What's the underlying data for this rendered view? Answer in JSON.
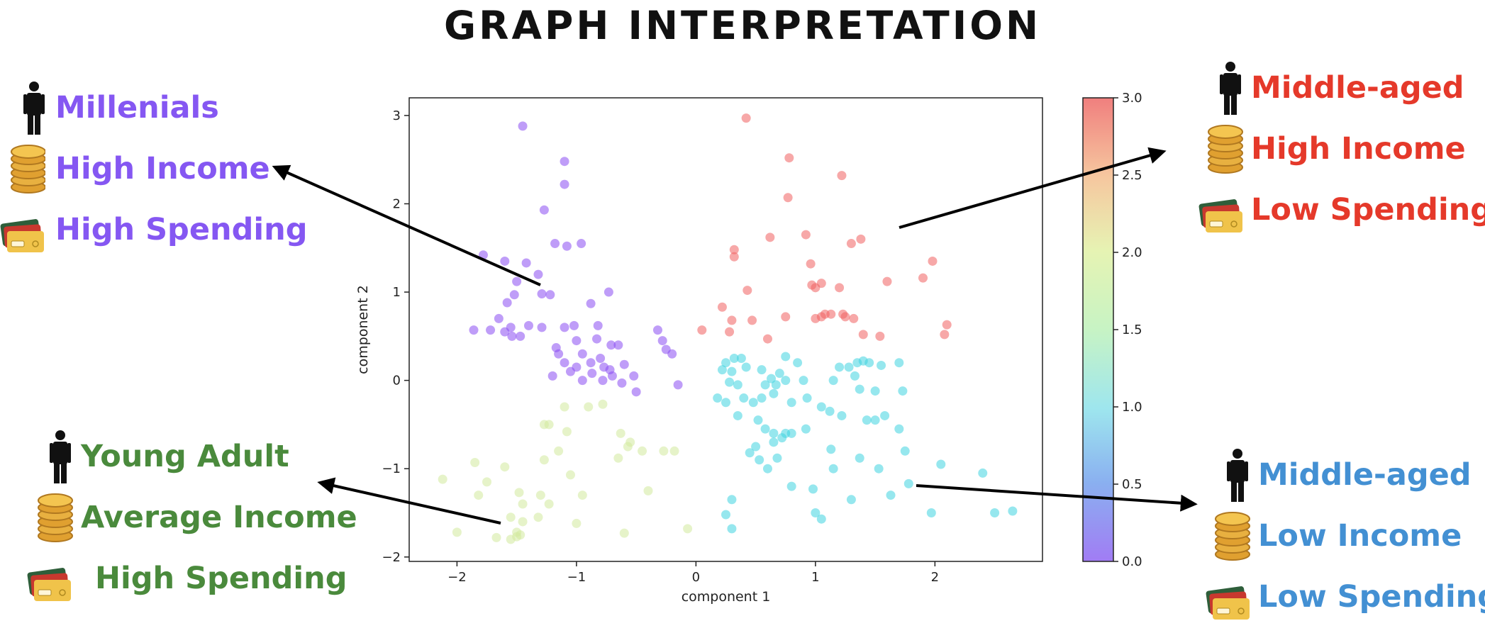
{
  "title": "GRAPH INTERPRETATION",
  "segments": [
    {
      "id": "purple",
      "color": "#8557F2",
      "lines": [
        "Millenials",
        "High Income",
        "High Spending"
      ]
    },
    {
      "id": "red",
      "color": "#E5392A",
      "lines": [
        "Middle-aged",
        "High Income",
        "Low Spending"
      ]
    },
    {
      "id": "green",
      "color": "#4A8A3C",
      "lines": [
        "Young Adult",
        "Average Income",
        "High Spending"
      ]
    },
    {
      "id": "blue",
      "color": "#4390D3",
      "lines": [
        "Middle-aged",
        "Low Income",
        "Low Spending"
      ]
    }
  ],
  "chart_data": {
    "type": "scatter",
    "xlabel": "component 1",
    "ylabel": "component 2",
    "xlim": [
      -2.4,
      2.9
    ],
    "ylim": [
      -2.05,
      3.2
    ],
    "xticks": [
      -2,
      -1,
      0,
      1,
      2
    ],
    "yticks": [
      -2,
      -1,
      0,
      1,
      2,
      3
    ],
    "colorbar": {
      "min": 0.0,
      "max": 3.0,
      "ticks": [
        "0.0",
        "0.5",
        "1.0",
        "1.5",
        "2.0",
        "2.5",
        "3.0"
      ],
      "colormap": "rainbow"
    },
    "grid": false,
    "series": [
      {
        "cluster": 0,
        "color": "#8B4DF2",
        "points": [
          [
            -1.45,
            2.88
          ],
          [
            -1.1,
            2.48
          ],
          [
            -1.1,
            2.22
          ],
          [
            -1.27,
            1.93
          ],
          [
            -1.18,
            1.55
          ],
          [
            -1.08,
            1.52
          ],
          [
            -0.96,
            1.55
          ],
          [
            -1.78,
            1.42
          ],
          [
            -1.6,
            1.35
          ],
          [
            -1.42,
            1.33
          ],
          [
            -1.32,
            1.2
          ],
          [
            -1.5,
            1.12
          ],
          [
            -1.29,
            0.98
          ],
          [
            -1.22,
            0.97
          ],
          [
            -0.73,
            1.0
          ],
          [
            -1.52,
            0.97
          ],
          [
            -1.58,
            0.88
          ],
          [
            -0.88,
            0.87
          ],
          [
            -1.65,
            0.7
          ],
          [
            -1.55,
            0.6
          ],
          [
            -1.4,
            0.62
          ],
          [
            -1.29,
            0.6
          ],
          [
            -1.1,
            0.6
          ],
          [
            -1.02,
            0.62
          ],
          [
            -0.82,
            0.62
          ],
          [
            -1.86,
            0.57
          ],
          [
            -1.72,
            0.57
          ],
          [
            -1.6,
            0.55
          ],
          [
            -1.54,
            0.5
          ],
          [
            -1.47,
            0.5
          ],
          [
            -1.0,
            0.45
          ],
          [
            -0.83,
            0.47
          ],
          [
            -0.71,
            0.4
          ],
          [
            -0.65,
            0.4
          ],
          [
            -0.32,
            0.57
          ],
          [
            -0.28,
            0.45
          ],
          [
            -1.17,
            0.37
          ],
          [
            -1.15,
            0.3
          ],
          [
            -0.95,
            0.3
          ],
          [
            -0.8,
            0.25
          ],
          [
            -1.1,
            0.2
          ],
          [
            -0.88,
            0.2
          ],
          [
            -1.0,
            0.15
          ],
          [
            -0.77,
            0.15
          ],
          [
            -0.72,
            0.12
          ],
          [
            -1.2,
            0.05
          ],
          [
            -1.05,
            0.1
          ],
          [
            -0.87,
            0.08
          ],
          [
            -0.7,
            0.05
          ],
          [
            -0.52,
            0.05
          ],
          [
            -0.95,
            0.0
          ],
          [
            -0.78,
            0.0
          ],
          [
            -0.62,
            -0.03
          ],
          [
            -0.5,
            -0.13
          ],
          [
            -0.6,
            0.18
          ],
          [
            -0.2,
            0.3
          ],
          [
            -0.25,
            0.35
          ],
          [
            -0.15,
            -0.05
          ]
        ]
      },
      {
        "cluster": 1,
        "color": "#3FD3E0",
        "points": [
          [
            0.25,
            0.2
          ],
          [
            0.32,
            0.25
          ],
          [
            0.38,
            0.25
          ],
          [
            0.22,
            0.12
          ],
          [
            0.3,
            0.1
          ],
          [
            0.42,
            0.15
          ],
          [
            0.55,
            0.12
          ],
          [
            0.75,
            0.27
          ],
          [
            0.85,
            0.2
          ],
          [
            0.63,
            0.02
          ],
          [
            0.7,
            0.08
          ],
          [
            0.58,
            -0.05
          ],
          [
            0.67,
            -0.05
          ],
          [
            0.75,
            0.0
          ],
          [
            0.9,
            0.0
          ],
          [
            0.28,
            -0.02
          ],
          [
            0.35,
            -0.05
          ],
          [
            0.18,
            -0.2
          ],
          [
            0.25,
            -0.25
          ],
          [
            0.4,
            -0.2
          ],
          [
            0.48,
            -0.25
          ],
          [
            0.55,
            -0.2
          ],
          [
            0.65,
            -0.15
          ],
          [
            0.8,
            -0.25
          ],
          [
            0.93,
            -0.2
          ],
          [
            1.05,
            -0.3
          ],
          [
            1.15,
            0.0
          ],
          [
            1.2,
            0.15
          ],
          [
            1.28,
            0.15
          ],
          [
            1.35,
            0.2
          ],
          [
            1.4,
            0.22
          ],
          [
            1.45,
            0.2
          ],
          [
            1.55,
            0.17
          ],
          [
            1.7,
            0.2
          ],
          [
            1.33,
            0.05
          ],
          [
            1.37,
            -0.1
          ],
          [
            1.5,
            -0.12
          ],
          [
            1.73,
            -0.12
          ],
          [
            1.12,
            -0.35
          ],
          [
            1.22,
            -0.4
          ],
          [
            1.43,
            -0.45
          ],
          [
            1.5,
            -0.45
          ],
          [
            1.58,
            -0.4
          ],
          [
            1.7,
            -0.55
          ],
          [
            0.35,
            -0.4
          ],
          [
            0.52,
            -0.45
          ],
          [
            0.58,
            -0.55
          ],
          [
            0.65,
            -0.6
          ],
          [
            0.75,
            -0.6
          ],
          [
            0.8,
            -0.6
          ],
          [
            0.92,
            -0.55
          ],
          [
            0.65,
            -0.7
          ],
          [
            0.72,
            -0.65
          ],
          [
            0.5,
            -0.75
          ],
          [
            0.45,
            -0.82
          ],
          [
            0.53,
            -0.9
          ],
          [
            0.6,
            -1.0
          ],
          [
            0.68,
            -0.88
          ],
          [
            1.13,
            -0.78
          ],
          [
            1.15,
            -1.0
          ],
          [
            1.37,
            -0.88
          ],
          [
            1.53,
            -1.0
          ],
          [
            1.75,
            -0.8
          ],
          [
            2.05,
            -0.95
          ],
          [
            2.4,
            -1.05
          ],
          [
            1.78,
            -1.17
          ],
          [
            1.3,
            -1.35
          ],
          [
            1.63,
            -1.3
          ],
          [
            0.8,
            -1.2
          ],
          [
            0.3,
            -1.35
          ],
          [
            0.25,
            -1.52
          ],
          [
            0.98,
            -1.23
          ],
          [
            1.0,
            -1.5
          ],
          [
            1.05,
            -1.57
          ],
          [
            0.3,
            -1.68
          ],
          [
            1.97,
            -1.5
          ],
          [
            2.5,
            -1.5
          ],
          [
            2.65,
            -1.48
          ]
        ]
      },
      {
        "cluster": 2,
        "color": "#D1EA9C",
        "points": [
          [
            -1.1,
            -0.3
          ],
          [
            -0.9,
            -0.3
          ],
          [
            -0.78,
            -0.27
          ],
          [
            -1.27,
            -0.5
          ],
          [
            -1.23,
            -0.5
          ],
          [
            -1.08,
            -0.58
          ],
          [
            -0.63,
            -0.6
          ],
          [
            -0.55,
            -0.7
          ],
          [
            -0.57,
            -0.75
          ],
          [
            -0.65,
            -0.88
          ],
          [
            -0.45,
            -0.8
          ],
          [
            -0.27,
            -0.8
          ],
          [
            -0.18,
            -0.8
          ],
          [
            -1.15,
            -0.8
          ],
          [
            -1.27,
            -0.9
          ],
          [
            -1.05,
            -1.07
          ],
          [
            -1.85,
            -0.93
          ],
          [
            -1.6,
            -0.98
          ],
          [
            -1.75,
            -1.15
          ],
          [
            -2.12,
            -1.12
          ],
          [
            -0.4,
            -1.25
          ],
          [
            -0.95,
            -1.3
          ],
          [
            -1.82,
            -1.3
          ],
          [
            -1.48,
            -1.27
          ],
          [
            -1.3,
            -1.3
          ],
          [
            -1.23,
            -1.4
          ],
          [
            -1.45,
            -1.4
          ],
          [
            -1.55,
            -1.55
          ],
          [
            -1.45,
            -1.6
          ],
          [
            -1.32,
            -1.55
          ],
          [
            -1.0,
            -1.62
          ],
          [
            -1.5,
            -1.72
          ],
          [
            -1.5,
            -1.77
          ],
          [
            -1.67,
            -1.78
          ],
          [
            -1.55,
            -1.8
          ],
          [
            -1.47,
            -1.75
          ],
          [
            -2.0,
            -1.72
          ],
          [
            -0.6,
            -1.73
          ],
          [
            -0.07,
            -1.68
          ]
        ]
      },
      {
        "cluster": 3,
        "color": "#F06060",
        "points": [
          [
            0.42,
            2.97
          ],
          [
            0.78,
            2.52
          ],
          [
            1.22,
            2.32
          ],
          [
            0.77,
            2.07
          ],
          [
            0.92,
            1.65
          ],
          [
            1.3,
            1.55
          ],
          [
            1.38,
            1.6
          ],
          [
            0.62,
            1.62
          ],
          [
            0.32,
            1.48
          ],
          [
            0.32,
            1.4
          ],
          [
            0.96,
            1.32
          ],
          [
            1.98,
            1.35
          ],
          [
            0.97,
            1.08
          ],
          [
            1.0,
            1.05
          ],
          [
            1.05,
            1.1
          ],
          [
            1.2,
            1.05
          ],
          [
            1.6,
            1.12
          ],
          [
            1.9,
            1.16
          ],
          [
            0.43,
            1.02
          ],
          [
            0.22,
            0.83
          ],
          [
            0.3,
            0.68
          ],
          [
            0.47,
            0.68
          ],
          [
            0.05,
            0.57
          ],
          [
            0.28,
            0.55
          ],
          [
            0.75,
            0.72
          ],
          [
            1.05,
            0.72
          ],
          [
            1.08,
            0.75
          ],
          [
            1.13,
            0.75
          ],
          [
            1.23,
            0.75
          ],
          [
            1.25,
            0.72
          ],
          [
            1.32,
            0.7
          ],
          [
            1.0,
            0.7
          ],
          [
            1.4,
            0.52
          ],
          [
            1.54,
            0.5
          ],
          [
            2.1,
            0.63
          ],
          [
            2.08,
            0.52
          ],
          [
            0.6,
            0.47
          ]
        ]
      }
    ]
  }
}
